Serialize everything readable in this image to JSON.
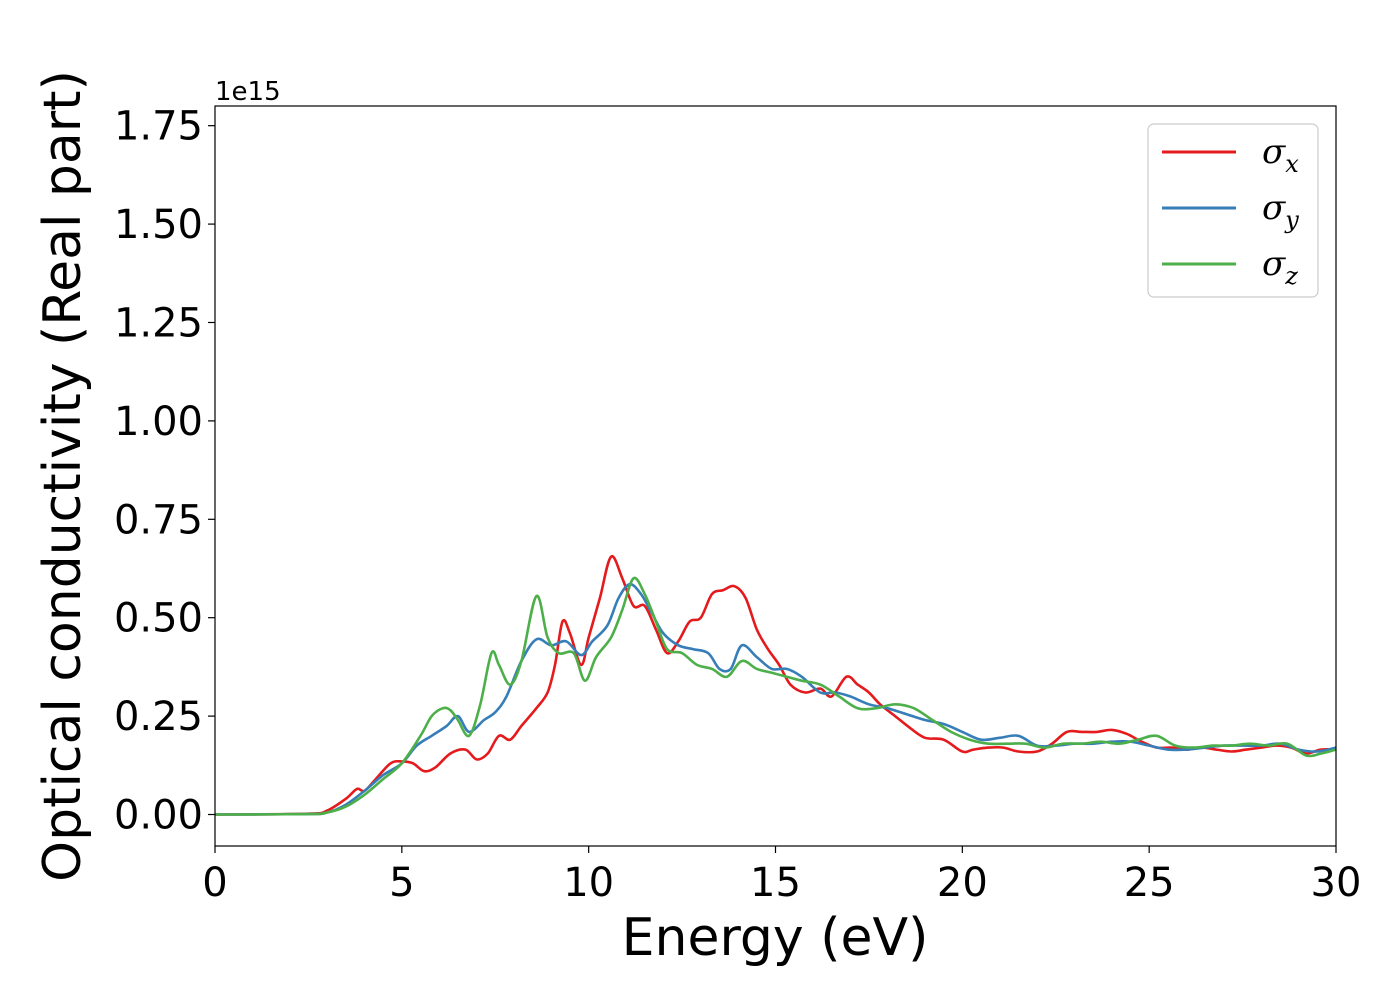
{
  "chart_data": {
    "type": "line",
    "title": "",
    "xlabel": "Energy (eV)",
    "ylabel": "Optical conductivity (Real part)",
    "y_offset_text": "1e15",
    "xlim": [
      0,
      30
    ],
    "ylim": [
      -0.08,
      1.8
    ],
    "x_ticks": [
      "0",
      "5",
      "10",
      "15",
      "20",
      "25",
      "30"
    ],
    "y_ticks": [
      "0.00",
      "0.25",
      "0.50",
      "0.75",
      "1.00",
      "1.25",
      "1.50",
      "1.75"
    ],
    "grid": false,
    "legend_position": "top-right",
    "series": [
      {
        "name": "σx",
        "legend_symbol": "σ",
        "legend_subscript": "x",
        "color": "#e41a1c",
        "x": [
          0,
          2.5,
          3.0,
          3.5,
          3.8,
          4.0,
          4.3,
          4.7,
          5.0,
          5.3,
          5.6,
          5.9,
          6.3,
          6.7,
          7.0,
          7.3,
          7.6,
          7.9,
          8.2,
          8.6,
          8.9,
          9.1,
          9.3,
          9.5,
          9.8,
          10.0,
          10.3,
          10.6,
          10.9,
          11.2,
          11.5,
          11.8,
          12.1,
          12.4,
          12.7,
          13.0,
          13.3,
          13.6,
          13.9,
          14.2,
          14.5,
          14.8,
          15.1,
          15.4,
          15.8,
          16.2,
          16.5,
          16.9,
          17.2,
          17.5,
          17.8,
          18.2,
          18.6,
          19.0,
          19.5,
          20.0,
          20.3,
          20.7,
          21.1,
          21.5,
          22.0,
          22.4,
          22.8,
          23.2,
          23.6,
          24.0,
          24.4,
          24.8,
          25.2,
          25.6,
          26.0,
          26.4,
          26.8,
          27.2,
          27.6,
          28.0,
          28.4,
          28.8,
          29.2,
          29.6,
          30.0
        ],
        "values": [
          0.0,
          0.002,
          0.01,
          0.04,
          0.065,
          0.06,
          0.09,
          0.13,
          0.135,
          0.13,
          0.11,
          0.12,
          0.155,
          0.165,
          0.14,
          0.155,
          0.2,
          0.19,
          0.225,
          0.27,
          0.31,
          0.38,
          0.49,
          0.46,
          0.38,
          0.45,
          0.55,
          0.655,
          0.6,
          0.53,
          0.53,
          0.47,
          0.41,
          0.44,
          0.49,
          0.5,
          0.56,
          0.57,
          0.58,
          0.55,
          0.47,
          0.42,
          0.38,
          0.33,
          0.31,
          0.32,
          0.3,
          0.35,
          0.33,
          0.31,
          0.28,
          0.25,
          0.22,
          0.195,
          0.19,
          0.16,
          0.165,
          0.17,
          0.17,
          0.16,
          0.16,
          0.18,
          0.21,
          0.21,
          0.21,
          0.215,
          0.205,
          0.185,
          0.17,
          0.17,
          0.165,
          0.17,
          0.165,
          0.16,
          0.165,
          0.17,
          0.175,
          0.17,
          0.155,
          0.165,
          0.165
        ]
      },
      {
        "name": "σy",
        "legend_symbol": "σ",
        "legend_subscript": "y",
        "color": "#377eb8",
        "x": [
          0,
          2.5,
          3.0,
          3.5,
          4.0,
          4.5,
          5.0,
          5.4,
          5.8,
          6.2,
          6.5,
          6.8,
          7.2,
          7.5,
          7.8,
          8.2,
          8.6,
          9.0,
          9.4,
          9.8,
          10.1,
          10.5,
          10.8,
          11.1,
          11.4,
          11.7,
          12.0,
          12.4,
          12.8,
          13.2,
          13.5,
          13.8,
          14.1,
          14.5,
          14.9,
          15.3,
          15.7,
          16.2,
          16.6,
          17.0,
          17.5,
          18.0,
          18.5,
          19.0,
          19.5,
          20.0,
          20.5,
          21.0,
          21.5,
          22.0,
          22.5,
          23.0,
          23.5,
          24.0,
          24.5,
          25.0,
          25.5,
          26.0,
          26.5,
          27.0,
          27.5,
          28.0,
          28.5,
          29.0,
          29.5,
          30.0
        ],
        "values": [
          0.0,
          0.001,
          0.005,
          0.025,
          0.06,
          0.1,
          0.13,
          0.175,
          0.2,
          0.225,
          0.25,
          0.21,
          0.24,
          0.26,
          0.3,
          0.39,
          0.445,
          0.43,
          0.44,
          0.405,
          0.44,
          0.48,
          0.55,
          0.585,
          0.56,
          0.51,
          0.46,
          0.43,
          0.42,
          0.41,
          0.37,
          0.37,
          0.43,
          0.4,
          0.37,
          0.37,
          0.35,
          0.31,
          0.31,
          0.3,
          0.28,
          0.27,
          0.255,
          0.24,
          0.23,
          0.21,
          0.19,
          0.195,
          0.2,
          0.175,
          0.175,
          0.18,
          0.18,
          0.185,
          0.185,
          0.175,
          0.165,
          0.165,
          0.17,
          0.175,
          0.175,
          0.175,
          0.18,
          0.165,
          0.16,
          0.17
        ]
      },
      {
        "name": "σz",
        "legend_symbol": "σ",
        "legend_subscript": "z",
        "color": "#4daf4a",
        "x": [
          0,
          2.5,
          3.0,
          3.5,
          4.0,
          4.5,
          5.0,
          5.5,
          5.8,
          6.1,
          6.3,
          6.5,
          6.8,
          7.1,
          7.4,
          7.6,
          7.9,
          8.2,
          8.6,
          8.9,
          9.2,
          9.6,
          9.9,
          10.2,
          10.6,
          10.9,
          11.2,
          11.5,
          11.8,
          12.1,
          12.5,
          12.9,
          13.3,
          13.7,
          14.1,
          14.5,
          14.9,
          15.3,
          15.7,
          16.2,
          16.7,
          17.2,
          17.7,
          18.2,
          18.7,
          19.2,
          19.7,
          20.2,
          20.7,
          21.2,
          21.7,
          22.2,
          22.7,
          23.2,
          23.7,
          24.2,
          24.7,
          25.2,
          25.7,
          26.2,
          26.7,
          27.2,
          27.7,
          28.2,
          28.7,
          29.2,
          29.6,
          30.0
        ],
        "values": [
          0.0,
          0.001,
          0.005,
          0.02,
          0.05,
          0.09,
          0.13,
          0.2,
          0.25,
          0.27,
          0.265,
          0.24,
          0.2,
          0.28,
          0.41,
          0.38,
          0.33,
          0.39,
          0.555,
          0.45,
          0.41,
          0.41,
          0.34,
          0.4,
          0.45,
          0.52,
          0.6,
          0.56,
          0.49,
          0.42,
          0.41,
          0.38,
          0.37,
          0.35,
          0.39,
          0.37,
          0.36,
          0.35,
          0.34,
          0.33,
          0.3,
          0.27,
          0.27,
          0.28,
          0.27,
          0.24,
          0.21,
          0.19,
          0.18,
          0.18,
          0.18,
          0.17,
          0.18,
          0.18,
          0.185,
          0.18,
          0.19,
          0.2,
          0.175,
          0.17,
          0.175,
          0.175,
          0.18,
          0.175,
          0.18,
          0.15,
          0.155,
          0.165
        ]
      }
    ]
  }
}
